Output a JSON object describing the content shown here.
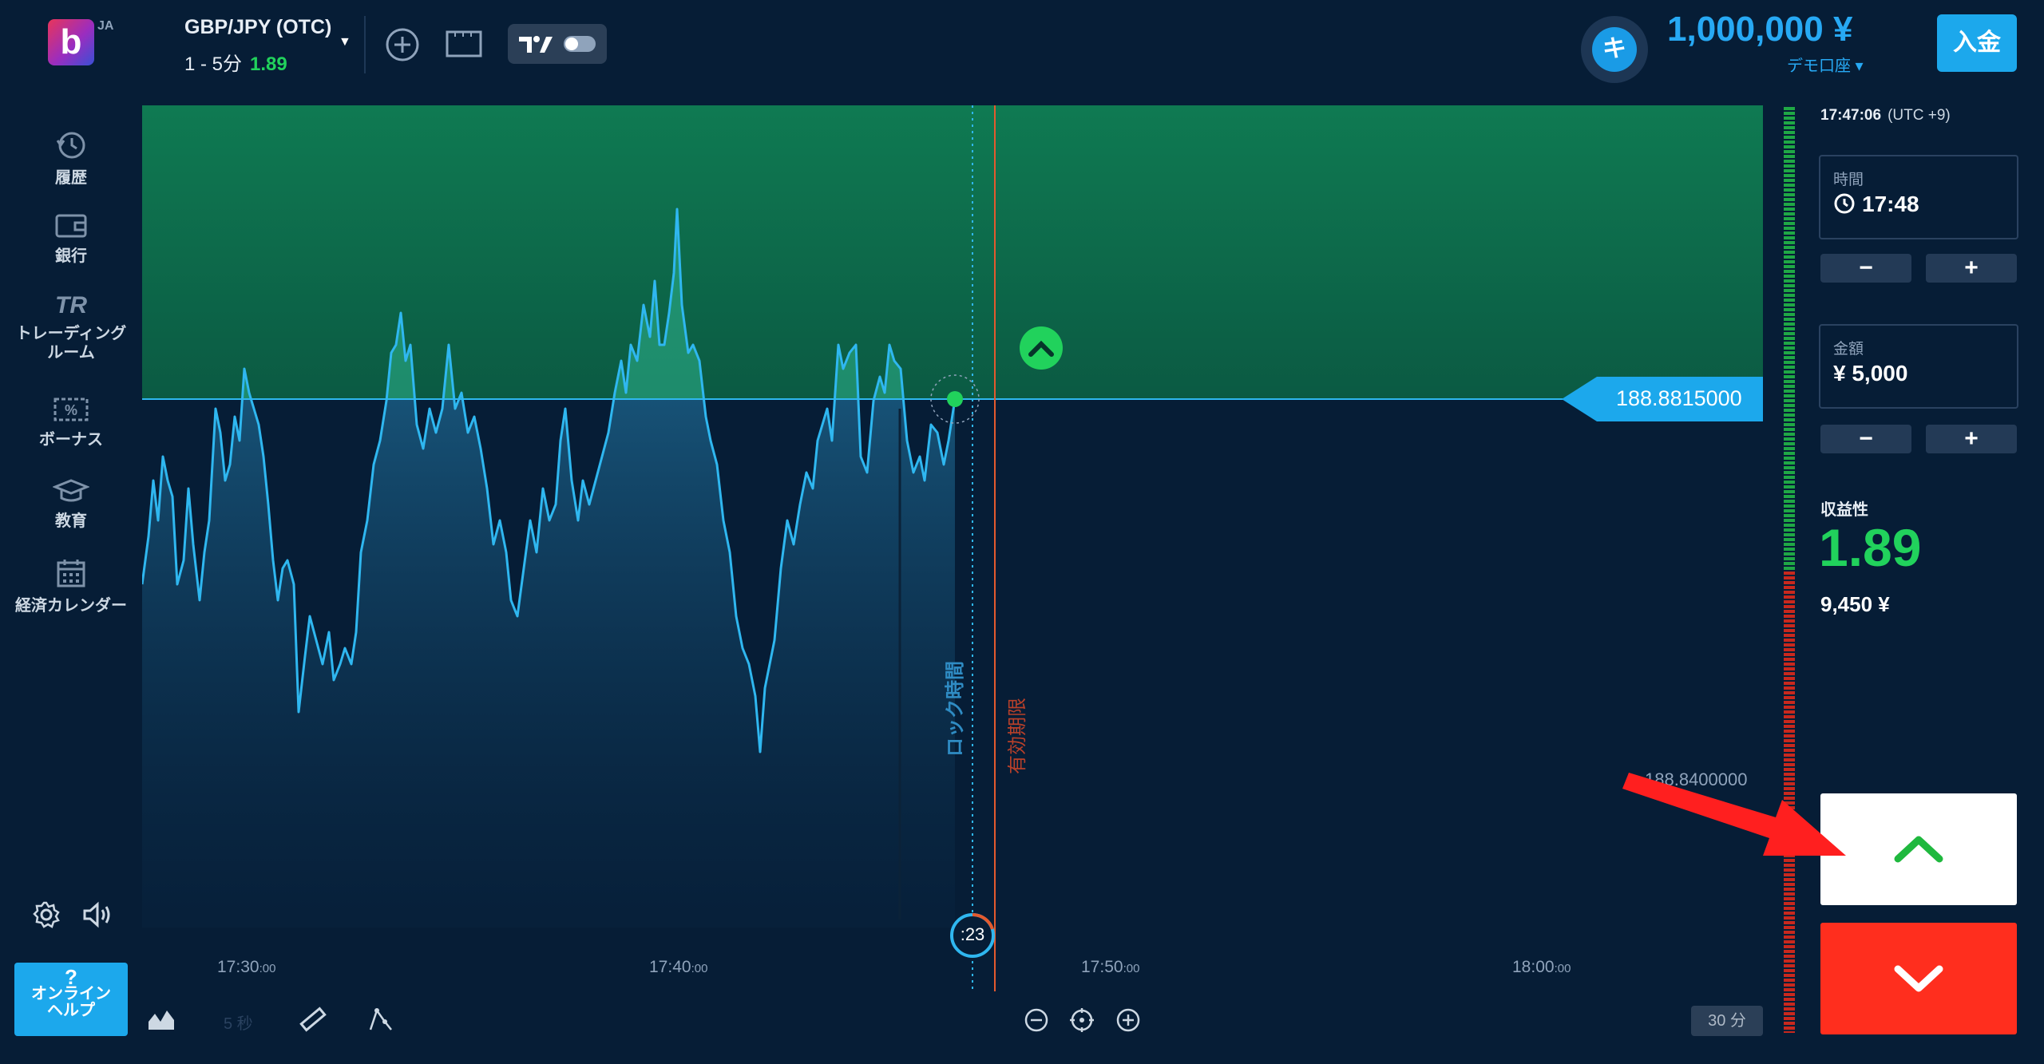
{
  "header": {
    "logo_letter": "b",
    "lang": "JA",
    "asset": "GBP/JPY (OTC)",
    "duration": "1 - 5分",
    "payout": "1.89",
    "balance": "1,000,000 ¥",
    "account_type": "デモ口座",
    "avatar_letter": "キ",
    "deposit_label": "入金"
  },
  "sidebar": {
    "items": [
      {
        "label": "履歴",
        "icon": "history-icon"
      },
      {
        "label": "銀行",
        "icon": "wallet-icon"
      },
      {
        "label": "トレーディングルーム",
        "icon": "trading-room-icon"
      },
      {
        "label": "ボーナス",
        "icon": "bonus-icon"
      },
      {
        "label": "教育",
        "icon": "graduation-cap-icon"
      },
      {
        "label": "経済カレンダー",
        "icon": "calendar-icon"
      }
    ],
    "help_line1": "?",
    "help_line2": "オンライン",
    "help_line3": "ヘルプ"
  },
  "chart": {
    "current_price": "188.8815000",
    "lower_price": "188.8400000",
    "lock_label": "ロック時間",
    "expiry_label": "有効期限",
    "countdown": ":23",
    "time_labels": [
      {
        "main": "17:30",
        "sec": ":00"
      },
      {
        "main": "17:40",
        "sec": ":00"
      },
      {
        "main": "17:50",
        "sec": ":00"
      },
      {
        "main": "18:00",
        "sec": ":00"
      }
    ],
    "candle_interval": "5 秒",
    "zoom_label": "30 分"
  },
  "panel": {
    "clock": "17:47:06",
    "timezone": "(UTC +9)",
    "time_label": "時間",
    "time_value": "17:48",
    "amount_label": "金額",
    "amount_value": "¥ 5,000",
    "minus": "−",
    "plus": "+",
    "profit_label": "収益性",
    "profit_value": "1.89",
    "profit_amount": "9,450 ¥"
  },
  "colors": {
    "background": "#061d36",
    "accent_blue": "#1ca8ec",
    "up_green": "#21d25c",
    "down_red": "#ff2e1e",
    "line": "#2fb7f0"
  }
}
